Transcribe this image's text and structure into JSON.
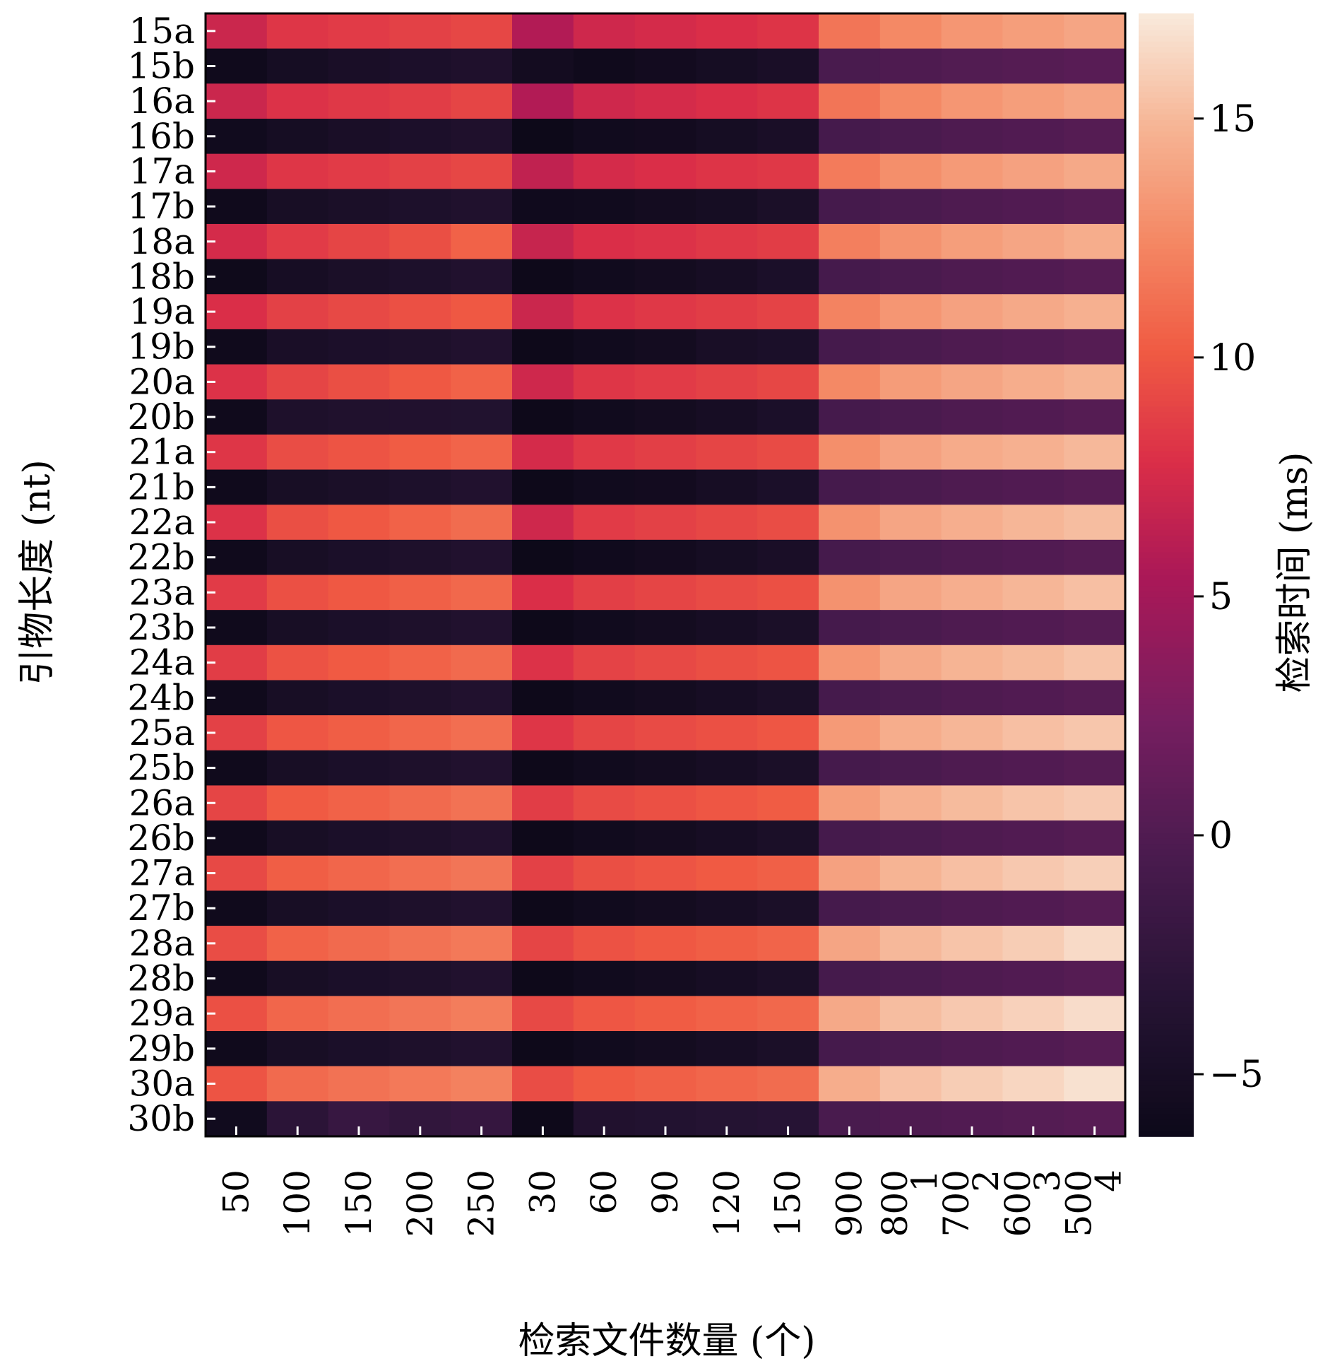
{
  "chart_data": {
    "type": "heatmap",
    "xlabel": "检索文件数量 (个)",
    "ylabel": "引物长度 (nt)",
    "colorbar_label": "检索时间 (ms)",
    "colormap": "rocket",
    "colorbar_range": [
      -6.3,
      17.2
    ],
    "colorbar_ticks": [
      {
        "value": 15,
        "label": "15"
      },
      {
        "value": 10,
        "label": "10"
      },
      {
        "value": 5,
        "label": "5"
      },
      {
        "value": 0,
        "label": "0"
      },
      {
        "value": -5,
        "label": "−5"
      }
    ],
    "x_categories": [
      "50",
      "100",
      "150",
      "200",
      "250",
      "30",
      "60",
      "90",
      "120",
      "150",
      "900",
      "1 800",
      "2 700",
      "3 600",
      "4 500"
    ],
    "y_categories": [
      "15a",
      "15b",
      "16a",
      "16b",
      "17a",
      "17b",
      "18a",
      "18b",
      "19a",
      "19b",
      "20a",
      "20b",
      "21a",
      "21b",
      "22a",
      "22b",
      "23a",
      "23b",
      "24a",
      "24b",
      "25a",
      "25b",
      "26a",
      "26b",
      "27a",
      "27b",
      "28a",
      "28b",
      "29a",
      "29b",
      "30a",
      "30b"
    ],
    "values": [
      [
        7.0,
        8.2,
        8.5,
        8.8,
        9.1,
        5.8,
        7.2,
        7.5,
        7.8,
        8.1,
        11.5,
        12.5,
        13.2,
        13.6,
        14.0
      ],
      [
        -6.0,
        -5.2,
        -4.8,
        -4.5,
        -4.2,
        -5.5,
        -6.0,
        -5.6,
        -5.2,
        -4.8,
        -0.5,
        -0.2,
        0.1,
        0.3,
        0.5
      ],
      [
        7.0,
        8.0,
        8.3,
        8.6,
        9.0,
        5.8,
        7.2,
        7.5,
        7.8,
        8.1,
        11.5,
        12.5,
        13.2,
        13.6,
        14.0
      ],
      [
        -5.8,
        -5.2,
        -4.8,
        -4.5,
        -4.2,
        -6.3,
        -5.8,
        -5.6,
        -5.2,
        -4.8,
        -0.8,
        -0.5,
        -0.2,
        0.0,
        0.3
      ],
      [
        7.2,
        8.2,
        8.5,
        8.8,
        9.1,
        6.5,
        7.5,
        7.8,
        8.1,
        8.3,
        11.8,
        12.8,
        13.4,
        13.8,
        14.2
      ],
      [
        -6.0,
        -5.0,
        -4.7,
        -4.4,
        -4.1,
        -5.9,
        -5.8,
        -5.5,
        -5.2,
        -4.7,
        -0.8,
        -0.5,
        -0.2,
        0.0,
        0.3
      ],
      [
        7.5,
        8.5,
        9.0,
        9.5,
        10.5,
        6.8,
        7.8,
        8.0,
        8.3,
        8.6,
        12.0,
        13.0,
        13.6,
        14.0,
        14.4
      ],
      [
        -6.1,
        -5.1,
        -4.7,
        -4.4,
        -4.0,
        -6.2,
        -5.8,
        -5.5,
        -5.1,
        -4.6,
        -0.8,
        -0.5,
        -0.2,
        0.0,
        0.3
      ],
      [
        7.8,
        8.8,
        9.2,
        9.6,
        10.0,
        7.0,
        8.0,
        8.3,
        8.6,
        8.9,
        12.2,
        13.2,
        13.8,
        14.2,
        14.6
      ],
      [
        -6.0,
        -4.8,
        -4.5,
        -4.3,
        -4.0,
        -6.2,
        -5.8,
        -5.5,
        -4.9,
        -4.6,
        -0.8,
        -0.5,
        -0.2,
        0.0,
        0.3
      ],
      [
        8.0,
        9.0,
        9.5,
        10.0,
        10.5,
        7.2,
        8.2,
        8.5,
        8.8,
        9.1,
        12.5,
        13.5,
        14.0,
        14.4,
        14.8
      ],
      [
        -6.0,
        -4.3,
        -4.1,
        -4.0,
        -3.9,
        -6.2,
        -5.8,
        -5.5,
        -5.1,
        -4.6,
        -0.8,
        -0.5,
        -0.2,
        0.0,
        0.3
      ],
      [
        8.2,
        9.4,
        9.8,
        10.2,
        10.6,
        7.5,
        8.4,
        8.7,
        9.0,
        9.3,
        12.8,
        13.8,
        14.3,
        14.6,
        15.0
      ],
      [
        -6.0,
        -5.0,
        -4.7,
        -4.4,
        -4.0,
        -6.2,
        -5.8,
        -5.6,
        -5.1,
        -4.6,
        -0.8,
        -0.5,
        -0.2,
        0.0,
        0.3
      ],
      [
        8.0,
        9.5,
        10.0,
        10.5,
        11.0,
        7.2,
        8.5,
        8.8,
        9.1,
        9.4,
        13.0,
        14.0,
        14.5,
        14.9,
        15.2
      ],
      [
        -6.0,
        -5.0,
        -4.6,
        -4.3,
        -4.0,
        -6.3,
        -5.9,
        -5.6,
        -5.2,
        -4.8,
        -0.8,
        -0.5,
        -0.2,
        0.0,
        0.3
      ],
      [
        8.5,
        9.6,
        10.0,
        10.4,
        10.8,
        7.8,
        8.7,
        9.0,
        9.3,
        9.6,
        13.0,
        14.0,
        14.5,
        14.9,
        15.3
      ],
      [
        -6.0,
        -5.0,
        -4.6,
        -4.3,
        -4.0,
        -6.2,
        -5.8,
        -5.5,
        -5.1,
        -4.7,
        -0.8,
        -0.5,
        -0.2,
        0.0,
        0.3
      ],
      [
        8.6,
        9.7,
        10.1,
        10.5,
        10.9,
        8.0,
        8.9,
        9.2,
        9.5,
        9.8,
        13.2,
        14.2,
        14.8,
        15.1,
        15.5
      ],
      [
        -6.0,
        -5.0,
        -4.6,
        -4.3,
        -4.0,
        -6.2,
        -5.8,
        -5.5,
        -5.1,
        -4.7,
        -0.8,
        -0.5,
        -0.2,
        0.0,
        0.3
      ],
      [
        8.8,
        9.9,
        10.3,
        10.7,
        11.1,
        8.2,
        9.0,
        9.3,
        9.6,
        9.9,
        13.4,
        14.4,
        14.9,
        15.3,
        15.6
      ],
      [
        -6.0,
        -5.0,
        -4.6,
        -4.3,
        -4.0,
        -6.2,
        -5.8,
        -5.5,
        -5.1,
        -4.7,
        -0.8,
        -0.5,
        -0.2,
        0.0,
        0.3
      ],
      [
        9.0,
        10.1,
        10.5,
        10.9,
        11.3,
        8.6,
        9.3,
        9.6,
        9.9,
        10.2,
        13.6,
        14.6,
        15.1,
        15.5,
        15.8
      ],
      [
        -6.0,
        -5.0,
        -4.6,
        -4.3,
        -4.0,
        -6.2,
        -5.8,
        -5.5,
        -5.1,
        -4.7,
        -0.8,
        -0.5,
        -0.2,
        0.0,
        0.3
      ],
      [
        9.2,
        10.3,
        10.7,
        11.1,
        11.5,
        8.8,
        9.5,
        9.8,
        10.1,
        10.4,
        13.8,
        14.8,
        15.3,
        15.7,
        16.0
      ],
      [
        -6.0,
        -5.0,
        -4.6,
        -4.3,
        -4.0,
        -6.2,
        -5.8,
        -5.5,
        -5.1,
        -4.7,
        -0.8,
        -0.5,
        -0.2,
        0.0,
        0.3
      ],
      [
        9.4,
        10.5,
        10.9,
        11.3,
        11.7,
        9.0,
        9.7,
        10.0,
        10.3,
        10.6,
        14.0,
        15.0,
        15.5,
        15.9,
        16.5
      ],
      [
        -6.0,
        -5.0,
        -4.6,
        -4.3,
        -4.0,
        -6.2,
        -5.8,
        -5.5,
        -5.1,
        -4.7,
        -0.8,
        -0.5,
        -0.2,
        0.0,
        0.3
      ],
      [
        9.6,
        10.7,
        11.1,
        11.5,
        11.9,
        9.2,
        9.9,
        10.2,
        10.5,
        10.8,
        14.2,
        15.2,
        15.7,
        16.1,
        16.6
      ],
      [
        -6.0,
        -5.0,
        -4.6,
        -4.3,
        -4.0,
        -6.2,
        -5.8,
        -5.5,
        -5.1,
        -4.7,
        -0.8,
        -0.5,
        -0.2,
        0.0,
        0.3
      ],
      [
        9.8,
        10.9,
        11.3,
        11.7,
        12.1,
        9.4,
        10.1,
        10.4,
        10.7,
        11.0,
        14.4,
        15.4,
        15.9,
        16.3,
        16.8
      ],
      [
        -5.8,
        -3.0,
        -2.0,
        -2.5,
        -2.2,
        -6.2,
        -4.0,
        -3.8,
        -3.6,
        -3.4,
        -0.5,
        -0.2,
        0.0,
        0.2,
        0.4
      ]
    ]
  }
}
